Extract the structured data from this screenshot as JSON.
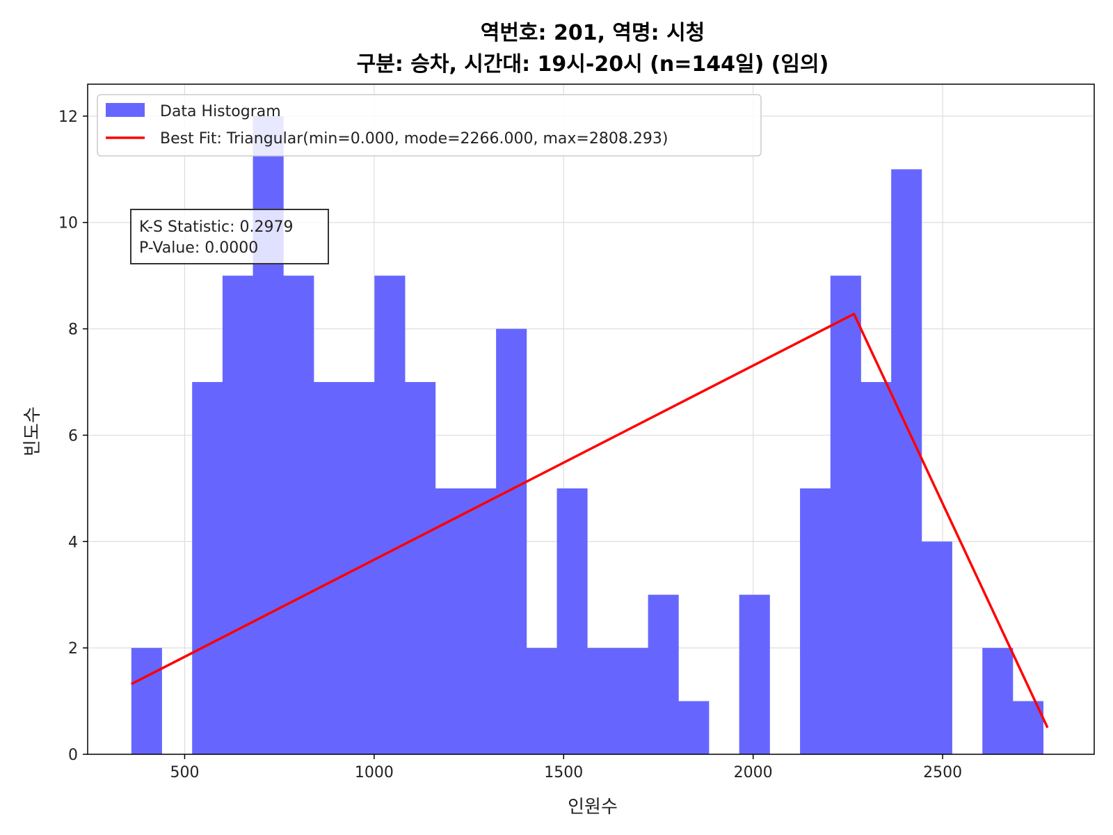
{
  "chart_data": {
    "type": "bar",
    "title_line1": "역번호: 201, 역명: 시청",
    "title_line2": "구분: 승차, 시간대: 19시-20시 (n=144일) (임의)",
    "xlabel": "인원수",
    "ylabel": "빈도수",
    "xlim": [
      244,
      2900
    ],
    "ylim": [
      0,
      12.6
    ],
    "xticks": [
      500,
      1000,
      1500,
      2000,
      2500
    ],
    "yticks": [
      0,
      2,
      4,
      6,
      8,
      10,
      12
    ],
    "grid": true,
    "legend_position": "upper-left",
    "histogram": {
      "name": "Data Histogram",
      "color": "#6666ff",
      "bin_start": 359.3,
      "bin_width": 80.2,
      "counts": [
        2,
        0,
        7,
        9,
        12,
        9,
        7,
        7,
        9,
        7,
        5,
        5,
        8,
        2,
        5,
        2,
        2,
        3,
        1,
        0,
        3,
        0,
        5,
        9,
        7,
        11,
        4,
        0,
        2,
        1
      ]
    },
    "fit_line": {
      "name": "Best Fit: Triangular(min=0.000, mode=2266.000, max=2808.293)",
      "color": "#ff0000",
      "points": [
        [
          359.3,
          1.32
        ],
        [
          2266.0,
          8.28
        ],
        [
          2776.8,
          0.5
        ]
      ]
    },
    "stats": {
      "ks": "K-S Statistic: 0.2979",
      "pvalue": "P-Value: 0.0000"
    }
  }
}
